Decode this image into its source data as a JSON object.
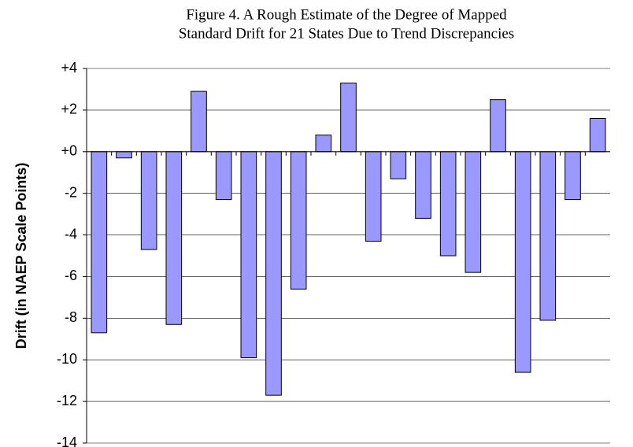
{
  "chart_data": {
    "type": "bar",
    "title": [
      "Figure 4. A Rough Estimate of the Degree of Mapped",
      "Standard Drift for 21 States Due to Trend Discrepancies"
    ],
    "y_label": "Drift (in NAEP Scale Points)",
    "categories": [
      null,
      null,
      null,
      null,
      null,
      null,
      null,
      null,
      null,
      null,
      null,
      null,
      null,
      null,
      null,
      null,
      null,
      null,
      null,
      null,
      null
    ],
    "values": [
      -8.7,
      -0.3,
      -4.7,
      -8.3,
      2.9,
      -2.3,
      -9.9,
      -11.7,
      -6.6,
      0.8,
      3.3,
      -4.3,
      -1.3,
      -3.2,
      -5.0,
      -5.8,
      2.5,
      -10.6,
      -8.1,
      -2.3,
      1.6
    ],
    "color": "#9999ff",
    "ylim": [
      -14,
      4
    ],
    "yticks": [
      {
        "value": 4,
        "label": "+4"
      },
      {
        "value": 2,
        "label": "+2"
      },
      {
        "value": 0,
        "label": "+0"
      },
      -2,
      -4,
      -6,
      -8,
      -10,
      -12,
      -14
    ],
    "grid": true
  }
}
